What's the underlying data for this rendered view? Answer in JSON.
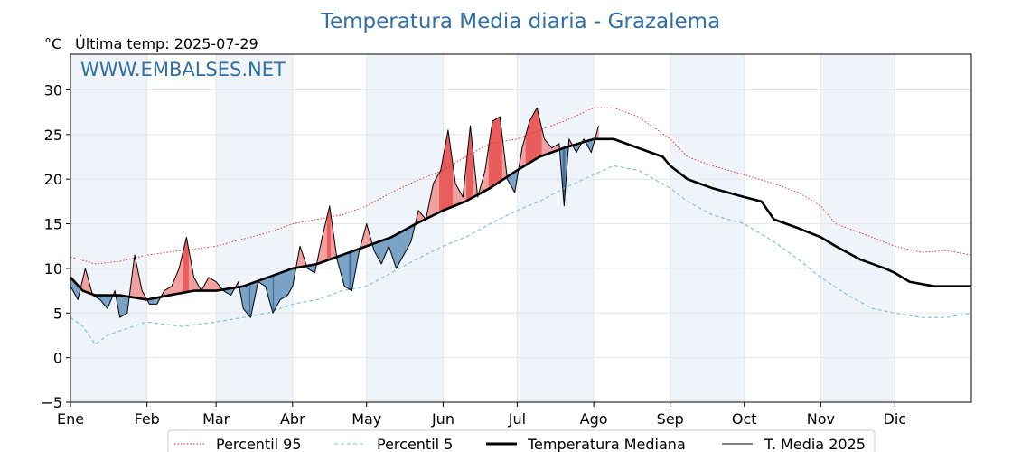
{
  "chart_data": {
    "type": "line",
    "title": "Temperatura Media diaria - Grazalema",
    "unit": "°C",
    "subtitle": "Última temp: 2025-07-29",
    "watermark": "WWW.EMBALSES.NET",
    "ylim": [
      -5,
      34
    ],
    "yticks": [
      -5,
      0,
      5,
      10,
      15,
      20,
      25,
      30
    ],
    "ytick_labels": [
      "−5",
      "0",
      "5",
      "10",
      "15",
      "20",
      "25",
      "30"
    ],
    "xlim": [
      0,
      365
    ],
    "months": [
      {
        "label": "Ene",
        "start": 0
      },
      {
        "label": "Feb",
        "start": 31
      },
      {
        "label": "Mar",
        "start": 59
      },
      {
        "label": "Abr",
        "start": 90
      },
      {
        "label": "May",
        "start": 120
      },
      {
        "label": "Jun",
        "start": 151
      },
      {
        "label": "Jul",
        "start": 181
      },
      {
        "label": "Ago",
        "start": 212
      },
      {
        "label": "Sep",
        "start": 243
      },
      {
        "label": "Oct",
        "start": 273
      },
      {
        "label": "Nov",
        "start": 304
      },
      {
        "label": "Dic",
        "start": 334
      }
    ],
    "grid": true,
    "legend_position": "bottom",
    "colors": {
      "title": "#2f6fa5",
      "p95": "#e8261b",
      "p5": "#7ec3df",
      "median": "#000000",
      "current": "#000000",
      "above_fill": "#f2a0a0",
      "above_fill_strong": "#e85c5c",
      "below_fill": "#7aa2c5",
      "below_fill_strong": "#3d6f9c",
      "shade": "#eef4fa"
    },
    "series": [
      {
        "name": "Percentil 95",
        "style": "dotted",
        "points": [
          [
            0,
            11.3
          ],
          [
            10,
            10.5
          ],
          [
            20,
            10.8
          ],
          [
            31,
            11.5
          ],
          [
            45,
            12.0
          ],
          [
            59,
            12.5
          ],
          [
            70,
            13.3
          ],
          [
            80,
            14.0
          ],
          [
            90,
            15.0
          ],
          [
            100,
            15.5
          ],
          [
            110,
            16.0
          ],
          [
            120,
            17.0
          ],
          [
            130,
            18.5
          ],
          [
            140,
            19.8
          ],
          [
            151,
            21.0
          ],
          [
            160,
            22.5
          ],
          [
            170,
            24.0
          ],
          [
            181,
            24.5
          ],
          [
            190,
            25.5
          ],
          [
            200,
            26.5
          ],
          [
            212,
            28.0
          ],
          [
            220,
            28.0
          ],
          [
            230,
            27.0
          ],
          [
            243,
            24.5
          ],
          [
            250,
            22.5
          ],
          [
            260,
            21.5
          ],
          [
            273,
            20.5
          ],
          [
            285,
            19.5
          ],
          [
            295,
            18.5
          ],
          [
            304,
            17.0
          ],
          [
            310,
            15.0
          ],
          [
            320,
            14.0
          ],
          [
            334,
            12.5
          ],
          [
            345,
            11.8
          ],
          [
            355,
            12.0
          ],
          [
            365,
            11.5
          ]
        ]
      },
      {
        "name": "Percentil 5",
        "style": "dashed",
        "points": [
          [
            0,
            4.5
          ],
          [
            5,
            3.5
          ],
          [
            10,
            1.5
          ],
          [
            15,
            2.5
          ],
          [
            20,
            3.0
          ],
          [
            31,
            4.0
          ],
          [
            45,
            3.5
          ],
          [
            59,
            4.0
          ],
          [
            70,
            4.5
          ],
          [
            80,
            5.0
          ],
          [
            90,
            6.0
          ],
          [
            100,
            6.5
          ],
          [
            110,
            7.5
          ],
          [
            120,
            8.0
          ],
          [
            130,
            9.5
          ],
          [
            140,
            11.0
          ],
          [
            151,
            12.5
          ],
          [
            160,
            13.5
          ],
          [
            170,
            15.0
          ],
          [
            181,
            16.5
          ],
          [
            190,
            17.5
          ],
          [
            200,
            19.0
          ],
          [
            212,
            20.5
          ],
          [
            220,
            21.5
          ],
          [
            230,
            21.0
          ],
          [
            243,
            19.0
          ],
          [
            250,
            17.5
          ],
          [
            260,
            16.0
          ],
          [
            273,
            15.0
          ],
          [
            285,
            13.0
          ],
          [
            295,
            11.0
          ],
          [
            304,
            9.0
          ],
          [
            315,
            7.0
          ],
          [
            325,
            5.5
          ],
          [
            334,
            5.0
          ],
          [
            345,
            4.5
          ],
          [
            355,
            4.5
          ],
          [
            365,
            5.0
          ]
        ]
      },
      {
        "name": "Temperatura Mediana",
        "style": "thick",
        "points": [
          [
            0,
            9.0
          ],
          [
            5,
            7.5
          ],
          [
            10,
            7.0
          ],
          [
            20,
            7.0
          ],
          [
            31,
            6.5
          ],
          [
            40,
            7.0
          ],
          [
            50,
            7.5
          ],
          [
            59,
            7.5
          ],
          [
            70,
            8.0
          ],
          [
            80,
            9.0
          ],
          [
            90,
            10.0
          ],
          [
            100,
            10.5
          ],
          [
            110,
            11.5
          ],
          [
            120,
            12.5
          ],
          [
            130,
            13.5
          ],
          [
            140,
            15.0
          ],
          [
            151,
            16.5
          ],
          [
            160,
            17.5
          ],
          [
            170,
            19.0
          ],
          [
            181,
            21.0
          ],
          [
            190,
            22.5
          ],
          [
            200,
            23.5
          ],
          [
            212,
            24.5
          ],
          [
            220,
            24.5
          ],
          [
            230,
            23.5
          ],
          [
            240,
            22.5
          ],
          [
            243,
            21.5
          ],
          [
            250,
            20.0
          ],
          [
            260,
            19.0
          ],
          [
            273,
            18.0
          ],
          [
            280,
            17.5
          ],
          [
            285,
            15.5
          ],
          [
            295,
            14.5
          ],
          [
            304,
            13.5
          ],
          [
            310,
            12.5
          ],
          [
            320,
            11.0
          ],
          [
            330,
            10.0
          ],
          [
            334,
            9.5
          ],
          [
            340,
            8.5
          ],
          [
            350,
            8.0
          ],
          [
            360,
            8.0
          ],
          [
            365,
            8.0
          ]
        ]
      },
      {
        "name": "T. Media 2025",
        "style": "thin",
        "points": [
          [
            0,
            8.0
          ],
          [
            3,
            6.5
          ],
          [
            6,
            10.0
          ],
          [
            9,
            7.0
          ],
          [
            12,
            6.5
          ],
          [
            15,
            5.5
          ],
          [
            18,
            7.5
          ],
          [
            20,
            4.5
          ],
          [
            23,
            5.0
          ],
          [
            26,
            11.5
          ],
          [
            29,
            7.5
          ],
          [
            32,
            6.0
          ],
          [
            35,
            6.0
          ],
          [
            38,
            7.5
          ],
          [
            41,
            8.0
          ],
          [
            44,
            10.0
          ],
          [
            47,
            13.5
          ],
          [
            50,
            9.0
          ],
          [
            53,
            7.5
          ],
          [
            56,
            9.0
          ],
          [
            59,
            8.5
          ],
          [
            62,
            7.5
          ],
          [
            65,
            7.0
          ],
          [
            68,
            8.5
          ],
          [
            70,
            5.5
          ],
          [
            73,
            4.5
          ],
          [
            76,
            8.5
          ],
          [
            79,
            8.0
          ],
          [
            82,
            5.0
          ],
          [
            85,
            6.5
          ],
          [
            88,
            7.0
          ],
          [
            90,
            8.0
          ],
          [
            93,
            12.5
          ],
          [
            96,
            10.0
          ],
          [
            99,
            9.5
          ],
          [
            102,
            13.5
          ],
          [
            105,
            17.0
          ],
          [
            108,
            11.0
          ],
          [
            111,
            8.0
          ],
          [
            114,
            7.5
          ],
          [
            117,
            12.0
          ],
          [
            120,
            15.0
          ],
          [
            123,
            12.0
          ],
          [
            126,
            10.5
          ],
          [
            129,
            12.5
          ],
          [
            132,
            10.0
          ],
          [
            135,
            11.5
          ],
          [
            138,
            13.0
          ],
          [
            141,
            16.5
          ],
          [
            144,
            15.5
          ],
          [
            147,
            19.5
          ],
          [
            150,
            21.0
          ],
          [
            153,
            25.5
          ],
          [
            156,
            19.5
          ],
          [
            159,
            18.0
          ],
          [
            162,
            26.0
          ],
          [
            165,
            18.0
          ],
          [
            168,
            21.0
          ],
          [
            171,
            26.5
          ],
          [
            174,
            27.0
          ],
          [
            177,
            20.0
          ],
          [
            180,
            18.5
          ],
          [
            183,
            23.5
          ],
          [
            186,
            26.5
          ],
          [
            189,
            28.0
          ],
          [
            192,
            24.5
          ],
          [
            195,
            23.5
          ],
          [
            198,
            24.0
          ],
          [
            200,
            17.0
          ],
          [
            202,
            24.5
          ],
          [
            205,
            23.0
          ],
          [
            208,
            24.5
          ],
          [
            211,
            23.0
          ],
          [
            214,
            26.0
          ]
        ]
      }
    ]
  },
  "legend": {
    "items": [
      {
        "label": "Percentil 95"
      },
      {
        "label": "Percentil 5"
      },
      {
        "label": "Temperatura Mediana"
      },
      {
        "label": "T. Media 2025"
      }
    ]
  }
}
